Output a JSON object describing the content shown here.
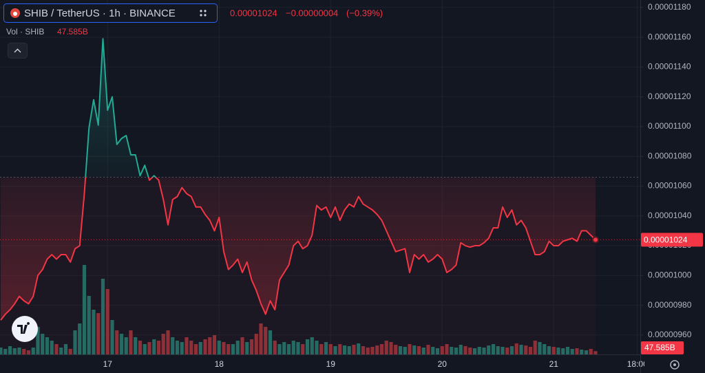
{
  "chart_data": {
    "type": "line",
    "title": "SHIB / TetherUS · 1h · BINANCE",
    "change": "−0.00000004",
    "change_pct": "(−0.39%)",
    "categories": [
      null,
      null,
      null,
      null,
      null,
      null,
      null,
      null,
      null,
      null,
      null,
      null,
      null,
      null,
      null,
      null,
      null,
      null,
      null,
      null,
      null,
      null,
      null,
      "17",
      null,
      null,
      null,
      null,
      null,
      null,
      null,
      null,
      null,
      null,
      null,
      null,
      null,
      null,
      null,
      null,
      null,
      null,
      null,
      null,
      null,
      null,
      null,
      "18",
      null,
      null,
      null,
      null,
      null,
      null,
      null,
      null,
      null,
      null,
      null,
      null,
      null,
      null,
      null,
      null,
      null,
      null,
      null,
      null,
      null,
      null,
      null,
      "19",
      null,
      null,
      null,
      null,
      null,
      null,
      null,
      null,
      null,
      null,
      null,
      null,
      null,
      null,
      null,
      null,
      null,
      null,
      null,
      null,
      null,
      null,
      null,
      "20",
      null,
      null,
      null,
      null,
      null,
      null,
      null,
      null,
      null,
      null,
      null,
      null,
      null,
      null,
      null,
      null,
      null,
      null,
      null,
      null,
      null,
      null,
      null,
      "21",
      null,
      null,
      null,
      null,
      null,
      null,
      null,
      null,
      null,
      null,
      null,
      null,
      null,
      null,
      null,
      null,
      null,
      "18:00"
    ],
    "baseline": 1.066e-05,
    "ylim": [
      9.47e-06,
      1.185e-05
    ],
    "yticks": [
      {
        "value": 1.18e-05,
        "label": "0.00001180"
      },
      {
        "value": 1.16e-05,
        "label": "0.00001160"
      },
      {
        "value": 1.14e-05,
        "label": "0.00001140"
      },
      {
        "value": 1.12e-05,
        "label": "0.00001120"
      },
      {
        "value": 1.1e-05,
        "label": "0.00001100"
      },
      {
        "value": 1.08e-05,
        "label": "0.00001080"
      },
      {
        "value": 1.06e-05,
        "label": "0.00001060"
      },
      {
        "value": 1.04e-05,
        "label": "0.00001040"
      },
      {
        "value": 1.02e-05,
        "label": "0.00001020"
      },
      {
        "value": 1e-05,
        "label": "0.00001000"
      },
      {
        "value": 9.8e-06,
        "label": "0.00000980"
      },
      {
        "value": 9.6e-06,
        "label": "0.00000960"
      }
    ],
    "grid": true,
    "series": [
      {
        "type": "line",
        "color": "#f23645",
        "up_color": "#22ab94",
        "values": [
          9.7e-06,
          9.74e-06,
          9.77e-06,
          9.81e-06,
          9.86e-06,
          9.83e-06,
          9.81e-06,
          9.86e-06,
          1e-05,
          1.004e-05,
          1.011e-05,
          1.014e-05,
          1.011e-05,
          1.014e-05,
          1.014e-05,
          1.009e-05,
          1.018e-05,
          1.02e-05,
          1.055e-05,
          1.099e-05,
          1.118e-05,
          1.101e-05,
          1.159e-05,
          1.111e-05,
          1.12e-05,
          1.088e-05,
          1.092e-05,
          1.094e-05,
          1.081e-05,
          1.081e-05,
          1.067e-05,
          1.074e-05,
          1.064e-05,
          1.067e-05,
          1.064e-05,
          1.051e-05,
          1.034e-05,
          1.051e-05,
          1.053e-05,
          1.059e-05,
          1.055e-05,
          1.053e-05,
          1.046e-05,
          1.046e-05,
          1.041e-05,
          1.037e-05,
          1.03e-05,
          1.039e-05,
          1.016e-05,
          1.004e-05,
          1.007e-05,
          1.011e-05,
          1.002e-05,
          1.009e-05,
          9.97e-06,
          9.9e-06,
          9.81e-06,
          9.74e-06,
          9.83e-06,
          9.77e-06,
          9.97e-06,
          1.002e-05,
          1.007e-05,
          1.02e-05,
          1.023e-05,
          1.018e-05,
          1.02e-05,
          1.027e-05,
          1.047e-05,
          1.044e-05,
          1.046e-05,
          1.039e-05,
          1.046e-05,
          1.037e-05,
          1.044e-05,
          1.048e-05,
          1.046e-05,
          1.053e-05,
          1.048e-05,
          1.046e-05,
          1.044e-05,
          1.041e-05,
          1.037e-05,
          1.03e-05,
          1.023e-05,
          1.016e-05,
          1.017e-05,
          1.018e-05,
          1.002e-05,
          1.014e-05,
          1.011e-05,
          1.014e-05,
          1.009e-05,
          1.011e-05,
          1.014e-05,
          1.011e-05,
          1.002e-05,
          1.004e-05,
          1.007e-05,
          1.022e-05,
          1.02e-05,
          1.019e-05,
          1.02e-05,
          1.02e-05,
          1.022e-05,
          1.025e-05,
          1.032e-05,
          1.032e-05,
          1.046e-05,
          1.039e-05,
          1.044e-05,
          1.034e-05,
          1.037e-05,
          1.032e-05,
          1.023e-05,
          1.014e-05,
          1.014e-05,
          1.016e-05,
          1.023e-05,
          1.02e-05,
          1.02e-05,
          1.023e-05,
          1.024e-05,
          1.025e-05,
          1.023e-05,
          1.03e-05,
          1.03e-05,
          1.027e-05,
          1.024e-05,
          null,
          null,
          null,
          null,
          null,
          null,
          null,
          null,
          null
        ]
      },
      {
        "type": "bar",
        "name": "Vol · SHIB",
        "up_color": "#1f6e64",
        "down_color": "#8c2f37",
        "values": [
          100,
          80,
          120,
          90,
          100,
          80,
          60,
          100,
          400,
          300,
          250,
          200,
          150,
          100,
          150,
          80,
          350,
          450,
          1300,
          850,
          650,
          600,
          1100,
          950,
          500,
          350,
          300,
          250,
          350,
          250,
          200,
          150,
          180,
          220,
          200,
          300,
          350,
          250,
          200,
          180,
          250,
          200,
          150,
          180,
          220,
          250,
          280,
          200,
          180,
          150,
          150,
          200,
          250,
          180,
          220,
          300,
          450,
          400,
          350,
          200,
          150,
          180,
          150,
          200,
          180,
          150,
          220,
          250,
          200,
          150,
          180,
          150,
          120,
          150,
          130,
          120,
          140,
          160,
          120,
          100,
          110,
          130,
          150,
          200,
          180,
          140,
          120,
          110,
          150,
          130,
          120,
          100,
          140,
          110,
          90,
          120,
          150,
          110,
          100,
          140,
          120,
          100,
          90,
          110,
          100,
          130,
          150,
          120,
          110,
          100,
          120,
          160,
          140,
          130,
          110,
          200,
          180,
          150,
          120,
          110,
          100,
          90,
          110,
          80,
          90,
          70,
          60,
          80,
          47.585,
          null,
          null,
          null,
          null,
          null,
          null,
          null,
          null,
          null
        ],
        "value_labels": [
          null,
          null,
          null,
          null,
          null,
          null,
          null,
          null,
          null,
          null,
          null,
          null,
          null,
          null,
          null,
          null,
          null,
          null,
          null,
          null,
          null,
          null,
          null,
          null,
          null,
          null,
          null,
          null,
          null,
          null,
          null,
          null,
          null,
          null,
          null,
          null,
          null,
          null,
          null,
          null,
          null,
          null,
          null,
          null,
          null,
          null,
          null,
          null,
          null,
          null,
          null,
          null,
          null,
          null,
          null,
          null,
          null,
          null,
          null,
          null,
          null,
          null,
          null,
          null,
          null,
          null,
          null,
          null,
          null,
          null,
          null,
          null,
          null,
          null,
          null,
          null,
          null,
          null,
          null,
          null,
          null,
          null,
          null,
          null,
          null,
          null,
          null,
          null,
          null,
          null,
          null,
          null,
          null,
          null,
          null,
          null,
          null,
          null,
          null,
          null,
          null,
          null,
          null,
          null,
          null,
          null,
          null,
          null,
          null,
          null,
          null,
          null,
          null,
          null,
          null,
          null,
          null,
          null,
          null,
          null,
          null,
          null,
          null,
          null,
          null,
          null,
          null,
          null,
          "47.585B",
          null,
          null,
          null,
          null,
          null,
          null,
          null,
          null,
          null
        ]
      }
    ]
  }
}
